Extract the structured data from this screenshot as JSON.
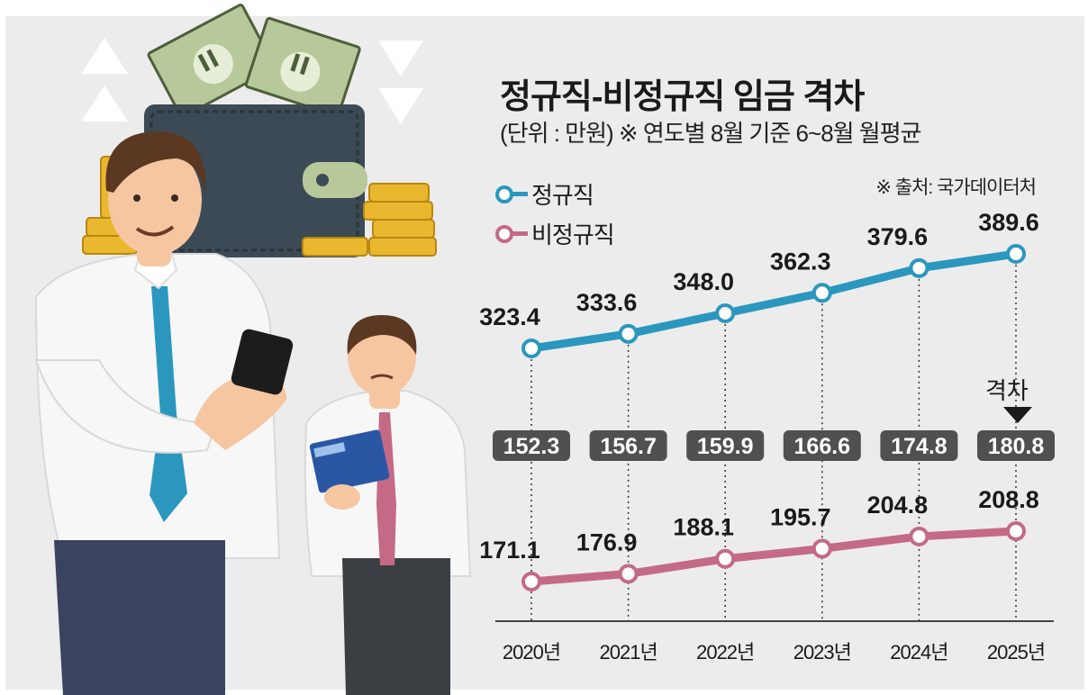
{
  "title": "정규직-비정규직 임금 격차",
  "subtitle": "(단위 : 만원) ※ 연도별 8월 기준 6~8월 월평균",
  "source": "※ 출처: 국가데이터처",
  "gap_note": "격차",
  "colors": {
    "regular": "#2b97be",
    "nonregular": "#c46a86",
    "gap_box": "#505050",
    "background": "#ececec"
  },
  "chart_data": {
    "type": "line",
    "categories": [
      "2020년",
      "2021년",
      "2022년",
      "2023년",
      "2024년",
      "2025년"
    ],
    "series": [
      {
        "name": "정규직",
        "values": [
          323.4,
          333.6,
          348.0,
          362.3,
          379.6,
          389.6
        ],
        "labels": [
          "323.4",
          "333.6",
          "348.0",
          "362.3",
          "379.6",
          "389.6"
        ]
      },
      {
        "name": "비정규직",
        "values": [
          171.1,
          176.9,
          188.1,
          195.7,
          204.8,
          208.8
        ],
        "labels": [
          "171.1",
          "176.9",
          "188.1",
          "195.7",
          "204.8",
          "208.8"
        ]
      }
    ],
    "gap": {
      "name": "격차",
      "values": [
        152.3,
        156.7,
        159.9,
        166.6,
        174.8,
        180.8
      ],
      "labels": [
        "152.3",
        "156.7",
        "159.9",
        "166.6",
        "174.8",
        "180.8"
      ]
    },
    "legend_position": "top-left",
    "grid": false
  }
}
